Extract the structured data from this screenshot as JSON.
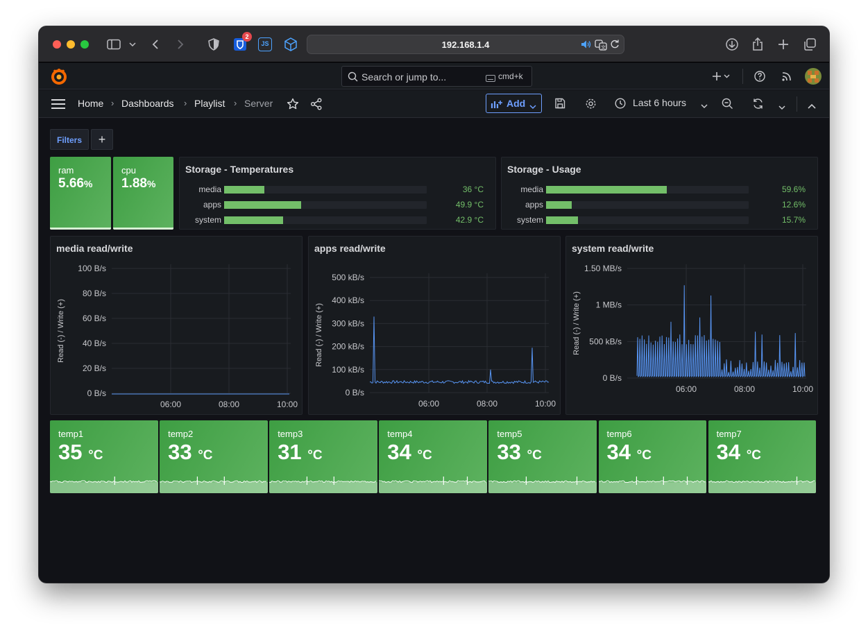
{
  "browser": {
    "url": "192.168.1.4",
    "badge_count": "2",
    "js_label": "JS"
  },
  "topbar": {
    "search_placeholder": "Search or jump to...",
    "shortcut": "cmd+k"
  },
  "breadcrumb": {
    "home": "Home",
    "dashboards": "Dashboards",
    "playlist": "Playlist",
    "server": "Server"
  },
  "toolbar": {
    "add_label": "Add",
    "time_range": "Last 6 hours"
  },
  "filters": {
    "label": "Filters",
    "add": "+"
  },
  "stats": {
    "ram": {
      "label": "ram",
      "value": "5.66",
      "unit": "%",
      "fraction": 0.0566
    },
    "cpu": {
      "label": "cpu",
      "value": "1.88",
      "unit": "%",
      "fraction": 0.0188
    }
  },
  "storage_temps": {
    "title": "Storage - Temperatures",
    "rows": [
      {
        "label": "media",
        "value": "36 °C",
        "fraction": 0.2
      },
      {
        "label": "apps",
        "value": "49.9 °C",
        "fraction": 0.38
      },
      {
        "label": "system",
        "value": "42.9 °C",
        "fraction": 0.29
      }
    ]
  },
  "storage_usage": {
    "title": "Storage - Usage",
    "rows": [
      {
        "label": "media",
        "value": "59.6%",
        "fraction": 0.596
      },
      {
        "label": "apps",
        "value": "12.6%",
        "fraction": 0.126
      },
      {
        "label": "system",
        "value": "15.7%",
        "fraction": 0.157
      }
    ]
  },
  "charts": {
    "ylabel": "Read (-) / Write (+)",
    "xticks": [
      "06:00",
      "08:00",
      "10:00"
    ],
    "media": {
      "title": "media read/write",
      "yticks": [
        "100 B/s",
        "80 B/s",
        "60 B/s",
        "40 B/s",
        "20 B/s",
        "0 B/s"
      ]
    },
    "apps": {
      "title": "apps read/write",
      "yticks": [
        "500 kB/s",
        "400 kB/s",
        "300 kB/s",
        "200 kB/s",
        "100 kB/s",
        "0 B/s"
      ]
    },
    "system": {
      "title": "system read/write",
      "yticks": [
        "1.50 MB/s",
        "1 MB/s",
        "500 kB/s",
        "0 B/s"
      ]
    }
  },
  "temps": [
    {
      "label": "temp1",
      "value": "35",
      "unit": "°C"
    },
    {
      "label": "temp2",
      "value": "33",
      "unit": "°C"
    },
    {
      "label": "temp3",
      "value": "31",
      "unit": "°C"
    },
    {
      "label": "temp4",
      "value": "34",
      "unit": "°C"
    },
    {
      "label": "temp5",
      "value": "33",
      "unit": "°C"
    },
    {
      "label": "temp6",
      "value": "34",
      "unit": "°C"
    },
    {
      "label": "temp7",
      "value": "34",
      "unit": "°C"
    }
  ],
  "colors": {
    "green": "#73bf69",
    "line": "#5794f2",
    "accent": "#6e9fff",
    "grafana": "#f46800"
  }
}
